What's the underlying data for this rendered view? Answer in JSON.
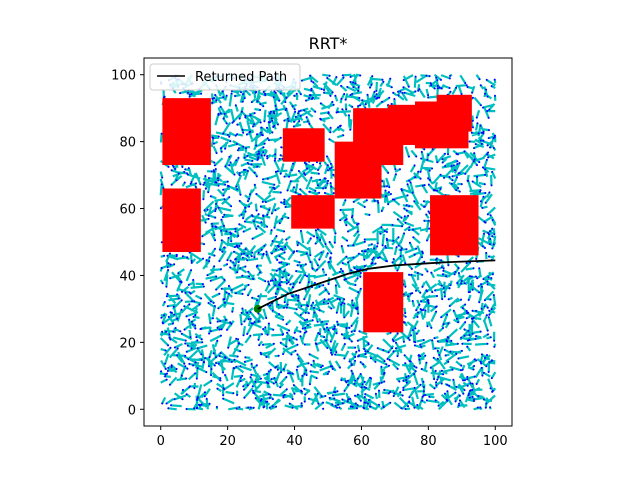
{
  "chart_data": {
    "type": "scatter",
    "title": "RRT*",
    "xlabel": "",
    "ylabel": "",
    "xlim": [
      -5,
      105
    ],
    "ylim": [
      -5,
      105
    ],
    "xticks": [
      0,
      20,
      40,
      60,
      80,
      100
    ],
    "yticks": [
      0,
      20,
      40,
      60,
      80,
      100
    ],
    "grid": false,
    "legend": {
      "placement": "top-left",
      "entries": [
        {
          "label": "Returned Path",
          "color": "#000000"
        }
      ]
    },
    "tree": {
      "node_color": "#0000ff",
      "edge_color": "#00bfbf",
      "domain": [
        0,
        100
      ]
    },
    "obstacles": {
      "color": "#ff0000",
      "rects": [
        {
          "x": [
            0.5,
            15
          ],
          "y": [
            73,
            93
          ]
        },
        {
          "x": [
            0.5,
            12
          ],
          "y": [
            47,
            66
          ]
        },
        {
          "x": [
            36.5,
            49
          ],
          "y": [
            74,
            84
          ]
        },
        {
          "x": [
            39,
            52
          ],
          "y": [
            54,
            64
          ]
        },
        {
          "x": [
            52,
            66
          ],
          "y": [
            63,
            80
          ]
        },
        {
          "x": [
            57.5,
            72.5
          ],
          "y": [
            73,
            90
          ]
        },
        {
          "x": [
            68,
            82
          ],
          "y": [
            79,
            91
          ]
        },
        {
          "x": [
            76,
            92
          ],
          "y": [
            78,
            92
          ]
        },
        {
          "x": [
            82.5,
            93
          ],
          "y": [
            83,
            94
          ]
        },
        {
          "x": [
            80.5,
            95
          ],
          "y": [
            46,
            64
          ]
        },
        {
          "x": [
            60.5,
            72.5
          ],
          "y": [
            23,
            41
          ]
        }
      ]
    },
    "start": {
      "x": 29,
      "y": 30,
      "color": "#008000"
    },
    "series": [
      {
        "name": "Returned Path",
        "color": "#000000",
        "points": [
          [
            29,
            30
          ],
          [
            33,
            32
          ],
          [
            38,
            34.5
          ],
          [
            44,
            36.5
          ],
          [
            50,
            38.5
          ],
          [
            56,
            40.5
          ],
          [
            62,
            42
          ],
          [
            70,
            43
          ],
          [
            78,
            43.5
          ],
          [
            86,
            44
          ],
          [
            94,
            44.3
          ],
          [
            100,
            44.5
          ]
        ]
      }
    ]
  }
}
